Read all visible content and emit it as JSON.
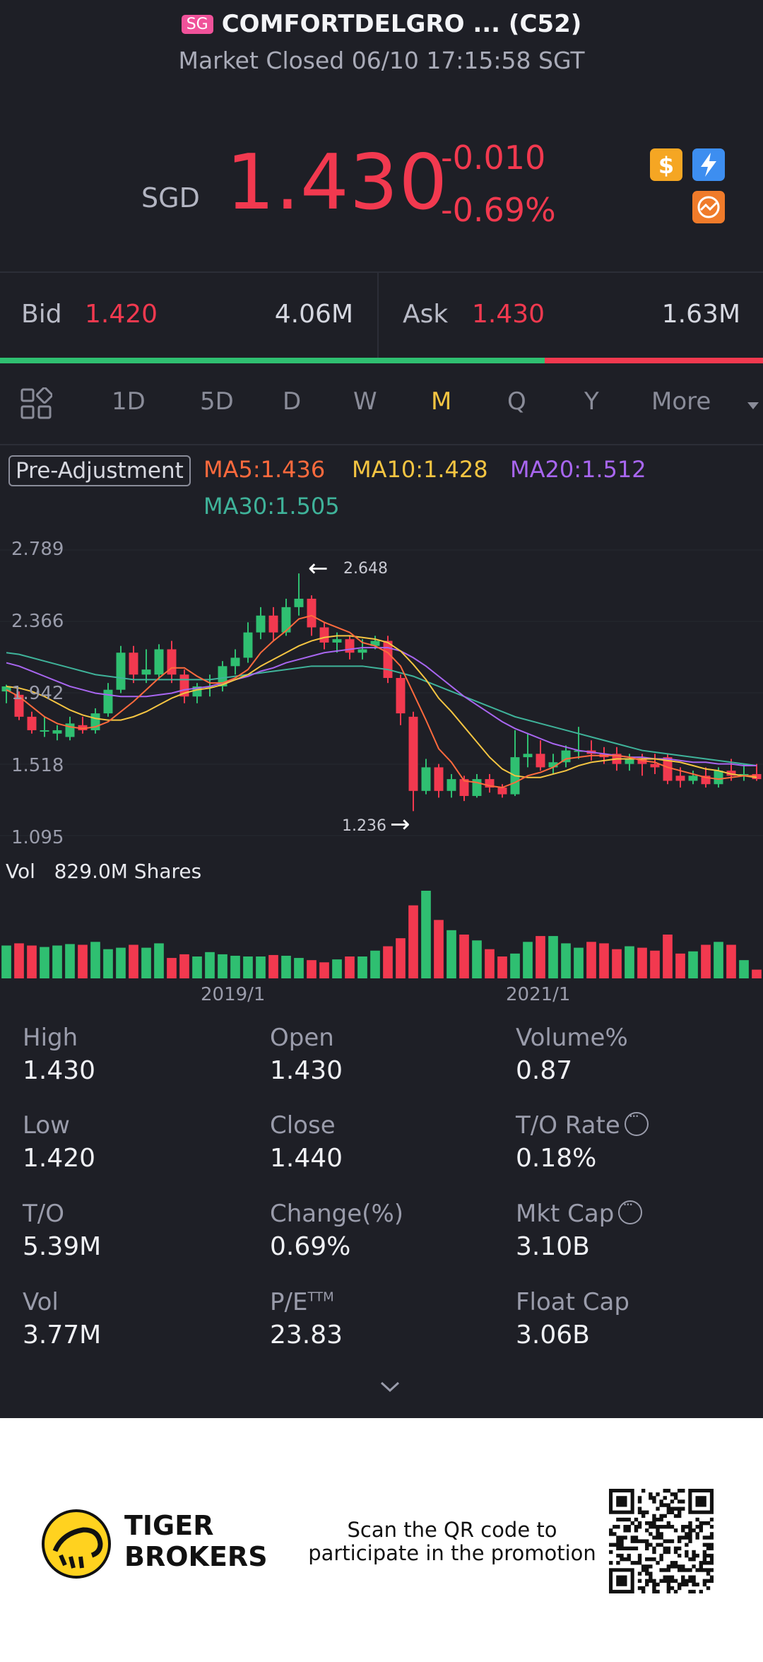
{
  "header": {
    "exchange_badge": "SG",
    "title": "COMFORTDELGRO ... (C52)",
    "status": "Market Closed 06/10 17:15:58 SGT"
  },
  "quote": {
    "currency": "SGD",
    "price": "1.430",
    "change": "-0.010",
    "change_pct": "-0.69%",
    "icons": [
      "dollar-icon",
      "flash-icon",
      "chart-icon"
    ]
  },
  "bid_ask": {
    "bid_label": "Bid",
    "bid_price": "1.420",
    "bid_size": "4.06M",
    "ask_label": "Ask",
    "ask_price": "1.430",
    "ask_size": "1.63M",
    "bid_share": 0.714
  },
  "timeframes": {
    "items": [
      "1D",
      "5D",
      "D",
      "W",
      "M",
      "Q",
      "Y"
    ],
    "more_label": "More",
    "active": "M"
  },
  "indicators": {
    "pre_adjustment": "Pre-Adjustment",
    "ma5": "MA5:1.436",
    "ma10": "MA10:1.428",
    "ma20": "MA20:1.512",
    "ma30": "MA30:1.505",
    "colors": {
      "ma5": "#ff6a3d",
      "ma10": "#f5c542",
      "ma20": "#a866f0",
      "ma30": "#3fb39a",
      "up": "#2fbf71",
      "down": "#f2394f"
    }
  },
  "chart_data": {
    "type": "candlestick",
    "y_ticks": [
      "2.789",
      "2.366",
      "1.942",
      "1.518",
      "1.095"
    ],
    "ylim": [
      1.095,
      2.789
    ],
    "high_label": "2.648",
    "low_label": "1.236",
    "x_labels": [
      "2019/1",
      "2021/1"
    ],
    "x_label_index": [
      15,
      39
    ],
    "candles": [
      [
        1.95,
        1.98,
        1.88,
        1.99
      ],
      [
        1.93,
        1.8,
        1.78,
        1.95
      ],
      [
        1.8,
        1.72,
        1.7,
        1.83
      ],
      [
        1.72,
        1.72,
        1.68,
        1.8
      ],
      [
        1.7,
        1.72,
        1.66,
        1.75
      ],
      [
        1.68,
        1.76,
        1.66,
        1.8
      ],
      [
        1.75,
        1.72,
        1.7,
        1.8
      ],
      [
        1.72,
        1.82,
        1.7,
        1.85
      ],
      [
        1.82,
        1.96,
        1.8,
        2.0
      ],
      [
        1.96,
        2.18,
        1.94,
        2.22
      ],
      [
        2.18,
        2.05,
        2.0,
        2.22
      ],
      [
        2.05,
        2.08,
        2.0,
        2.2
      ],
      [
        2.05,
        2.2,
        2.02,
        2.23
      ],
      [
        2.2,
        2.05,
        2.0,
        2.25
      ],
      [
        2.05,
        1.92,
        1.88,
        2.08
      ],
      [
        1.92,
        1.98,
        1.88,
        2.0
      ],
      [
        1.98,
        1.98,
        1.92,
        2.05
      ],
      [
        1.98,
        2.1,
        1.95,
        2.13
      ],
      [
        2.1,
        2.15,
        2.05,
        2.2
      ],
      [
        2.15,
        2.3,
        2.12,
        2.36
      ],
      [
        2.3,
        2.4,
        2.26,
        2.45
      ],
      [
        2.4,
        2.3,
        2.25,
        2.45
      ],
      [
        2.3,
        2.45,
        2.28,
        2.5
      ],
      [
        2.45,
        2.5,
        2.4,
        2.65
      ],
      [
        2.5,
        2.33,
        2.28,
        2.52
      ],
      [
        2.33,
        2.24,
        2.2,
        2.36
      ],
      [
        2.24,
        2.26,
        2.18,
        2.3
      ],
      [
        2.26,
        2.18,
        2.14,
        2.28
      ],
      [
        2.18,
        2.2,
        2.14,
        2.26
      ],
      [
        2.22,
        2.25,
        2.2,
        2.28
      ],
      [
        2.25,
        2.03,
        2.0,
        2.28
      ],
      [
        2.03,
        1.82,
        1.75,
        2.05
      ],
      [
        1.8,
        1.36,
        1.24,
        1.83
      ],
      [
        1.36,
        1.5,
        1.34,
        1.55
      ],
      [
        1.5,
        1.36,
        1.32,
        1.52
      ],
      [
        1.36,
        1.43,
        1.32,
        1.46
      ],
      [
        1.43,
        1.33,
        1.3,
        1.45
      ],
      [
        1.33,
        1.43,
        1.32,
        1.46
      ],
      [
        1.43,
        1.38,
        1.35,
        1.46
      ],
      [
        1.38,
        1.34,
        1.32,
        1.4
      ],
      [
        1.34,
        1.56,
        1.33,
        1.72
      ],
      [
        1.56,
        1.58,
        1.5,
        1.7
      ],
      [
        1.58,
        1.5,
        1.48,
        1.66
      ],
      [
        1.5,
        1.53,
        1.46,
        1.58
      ],
      [
        1.53,
        1.6,
        1.5,
        1.63
      ],
      [
        1.6,
        1.6,
        1.55,
        1.74
      ],
      [
        1.6,
        1.58,
        1.54,
        1.66
      ],
      [
        1.58,
        1.56,
        1.52,
        1.62
      ],
      [
        1.58,
        1.52,
        1.48,
        1.62
      ],
      [
        1.52,
        1.55,
        1.48,
        1.58
      ],
      [
        1.55,
        1.52,
        1.45,
        1.58
      ],
      [
        1.52,
        1.5,
        1.46,
        1.58
      ],
      [
        1.56,
        1.42,
        1.4,
        1.58
      ],
      [
        1.45,
        1.42,
        1.38,
        1.5
      ],
      [
        1.42,
        1.45,
        1.4,
        1.48
      ],
      [
        1.45,
        1.4,
        1.38,
        1.5
      ],
      [
        1.4,
        1.48,
        1.38,
        1.5
      ],
      [
        1.48,
        1.45,
        1.42,
        1.55
      ],
      [
        1.45,
        1.46,
        1.42,
        1.52
      ],
      [
        1.46,
        1.43,
        1.42,
        1.52
      ]
    ],
    "ma5": [
      1.96,
      1.92,
      1.86,
      1.8,
      1.76,
      1.74,
      1.73,
      1.74,
      1.77,
      1.83,
      1.89,
      1.96,
      2.03,
      2.09,
      2.09,
      2.04,
      2.0,
      2.0,
      2.03,
      2.08,
      2.18,
      2.25,
      2.31,
      2.38,
      2.4,
      2.36,
      2.33,
      2.3,
      2.24,
      2.22,
      2.18,
      2.1,
      1.94,
      1.78,
      1.61,
      1.53,
      1.42,
      1.41,
      1.39,
      1.38,
      1.41,
      1.45,
      1.47,
      1.5,
      1.55,
      1.56,
      1.57,
      1.57,
      1.57,
      1.56,
      1.54,
      1.53,
      1.5,
      1.48,
      1.46,
      1.44,
      1.43,
      1.44,
      1.45,
      1.45
    ],
    "ma10": [
      1.98,
      1.97,
      1.95,
      1.92,
      1.88,
      1.84,
      1.81,
      1.79,
      1.78,
      1.78,
      1.8,
      1.83,
      1.87,
      1.91,
      1.94,
      1.96,
      1.97,
      1.99,
      2.02,
      2.05,
      2.1,
      2.14,
      2.18,
      2.22,
      2.25,
      2.27,
      2.28,
      2.28,
      2.27,
      2.26,
      2.24,
      2.19,
      2.11,
      2.02,
      1.91,
      1.83,
      1.74,
      1.65,
      1.56,
      1.49,
      1.45,
      1.44,
      1.44,
      1.46,
      1.48,
      1.51,
      1.53,
      1.54,
      1.55,
      1.55,
      1.55,
      1.55,
      1.54,
      1.53,
      1.51,
      1.49,
      1.48,
      1.46,
      1.45,
      1.44
    ],
    "ma20": [
      2.12,
      2.1,
      2.07,
      2.04,
      2.01,
      1.98,
      1.96,
      1.94,
      1.93,
      1.92,
      1.92,
      1.92,
      1.93,
      1.94,
      1.96,
      1.97,
      1.98,
      2.0,
      2.02,
      2.04,
      2.07,
      2.09,
      2.12,
      2.14,
      2.16,
      2.18,
      2.19,
      2.2,
      2.21,
      2.21,
      2.21,
      2.19,
      2.15,
      2.1,
      2.04,
      1.98,
      1.92,
      1.87,
      1.82,
      1.77,
      1.73,
      1.7,
      1.67,
      1.64,
      1.62,
      1.6,
      1.59,
      1.58,
      1.57,
      1.56,
      1.56,
      1.55,
      1.55,
      1.54,
      1.53,
      1.53,
      1.52,
      1.52,
      1.51,
      1.51
    ],
    "ma30": [
      2.18,
      2.17,
      2.15,
      2.13,
      2.11,
      2.09,
      2.07,
      2.05,
      2.04,
      2.03,
      2.02,
      2.02,
      2.02,
      2.02,
      2.02,
      2.02,
      2.02,
      2.03,
      2.04,
      2.05,
      2.06,
      2.07,
      2.08,
      2.09,
      2.1,
      2.1,
      2.1,
      2.1,
      2.1,
      2.09,
      2.08,
      2.06,
      2.04,
      2.01,
      1.98,
      1.95,
      1.92,
      1.89,
      1.86,
      1.83,
      1.8,
      1.78,
      1.76,
      1.74,
      1.72,
      1.7,
      1.68,
      1.66,
      1.64,
      1.62,
      1.6,
      1.59,
      1.58,
      1.57,
      1.56,
      1.55,
      1.54,
      1.53,
      1.52,
      1.51
    ],
    "volume_label": "Vol",
    "volume_value": "829.0M Shares",
    "volume": [
      0.45,
      0.48,
      0.45,
      0.43,
      0.45,
      0.47,
      0.46,
      0.5,
      0.4,
      0.42,
      0.46,
      0.42,
      0.48,
      0.28,
      0.33,
      0.3,
      0.36,
      0.33,
      0.31,
      0.3,
      0.3,
      0.32,
      0.31,
      0.28,
      0.25,
      0.22,
      0.26,
      0.3,
      0.3,
      0.38,
      0.44,
      0.55,
      1.0,
      1.2,
      0.8,
      0.66,
      0.6,
      0.52,
      0.4,
      0.3,
      0.34,
      0.5,
      0.58,
      0.58,
      0.48,
      0.42,
      0.5,
      0.48,
      0.4,
      0.44,
      0.42,
      0.38,
      0.6,
      0.34,
      0.37,
      0.46,
      0.5,
      0.46,
      0.25,
      0.12
    ]
  },
  "stats": [
    {
      "label": "High",
      "value": "1.430"
    },
    {
      "label": "Open",
      "value": "1.430"
    },
    {
      "label": "Volume%",
      "value": "0.87"
    },
    {
      "label": "Low",
      "value": "1.420"
    },
    {
      "label": "Close",
      "value": "1.440"
    },
    {
      "label": "T/O Rate",
      "value": "0.18%",
      "info": true
    },
    {
      "label": "T/O",
      "value": "5.39M"
    },
    {
      "label": "Change(%)",
      "value": "0.69%"
    },
    {
      "label": "Mkt Cap",
      "value": "3.10B",
      "info": true
    },
    {
      "label": "Vol",
      "value": "3.77M"
    },
    {
      "label": "P/E",
      "sup": "TTM",
      "value": "23.83"
    },
    {
      "label": "Float Cap",
      "value": "3.06B"
    }
  ],
  "footer": {
    "brand_line1": "TIGER",
    "brand_line2": "BROKERS",
    "promo_line1": "Scan the QR code to",
    "promo_line2": "participate in the promotion"
  }
}
